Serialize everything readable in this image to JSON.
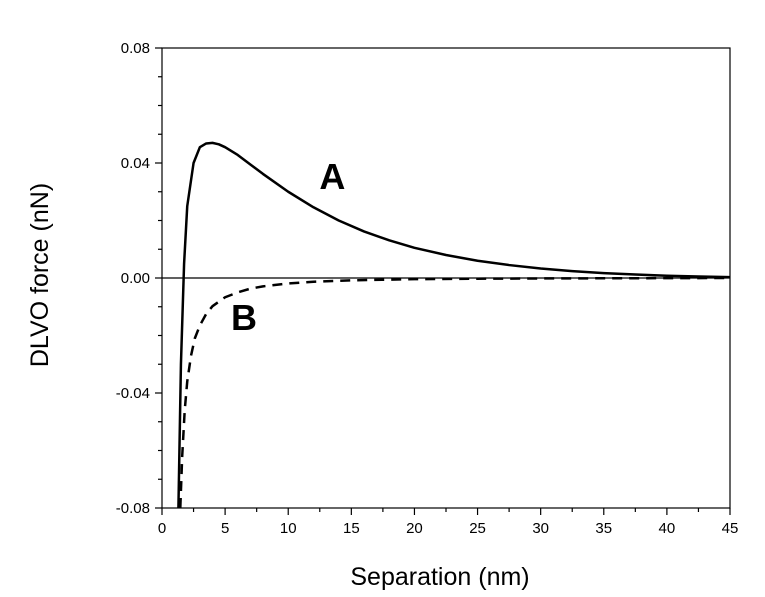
{
  "chart_data": {
    "type": "line",
    "xlabel": "Separation (nm)",
    "ylabel": "DLVO force (nN)",
    "xlim": [
      0,
      45
    ],
    "ylim": [
      -0.08,
      0.08
    ],
    "x_ticks": [
      "0",
      "5",
      "10",
      "15",
      "20",
      "25",
      "30",
      "35",
      "40",
      "45"
    ],
    "y_ticks": [
      "-0.08",
      "-0.04",
      "0.00",
      "0.04",
      "0.08"
    ],
    "grid": false,
    "zero_line": true,
    "series": [
      {
        "name": "A",
        "style": "solid",
        "color": "#000000",
        "x": [
          1.3,
          1.5,
          1.75,
          2.0,
          2.5,
          3.0,
          3.5,
          4.0,
          4.5,
          5.0,
          6.0,
          7.0,
          8.0,
          10.0,
          12.0,
          14.0,
          16.0,
          18.0,
          20.0,
          22.5,
          25.0,
          27.5,
          30.0,
          32.5,
          35.0,
          37.5,
          40.0,
          42.5,
          45.0
        ],
        "y": [
          -0.08,
          -0.03,
          0.005,
          0.025,
          0.04,
          0.0455,
          0.0468,
          0.047,
          0.0465,
          0.0455,
          0.0428,
          0.0395,
          0.0362,
          0.03,
          0.0246,
          0.02,
          0.0162,
          0.0131,
          0.0105,
          0.008,
          0.006,
          0.0045,
          0.0033,
          0.0024,
          0.0017,
          0.0012,
          0.0008,
          0.0005,
          0.0003
        ]
      },
      {
        "name": "B",
        "style": "dashed",
        "color": "#000000",
        "x": [
          1.45,
          1.6,
          1.8,
          2.0,
          2.3,
          2.6,
          3.0,
          3.5,
          4.0,
          5.0,
          6.0,
          7.0,
          8.0,
          10.0,
          12.0,
          15.0,
          20.0,
          25.0,
          30.0,
          35.0,
          40.0,
          45.0
        ],
        "y": [
          -0.08,
          -0.062,
          -0.046,
          -0.036,
          -0.027,
          -0.021,
          -0.0165,
          -0.0125,
          -0.0098,
          -0.0067,
          -0.005,
          -0.0037,
          -0.0029,
          -0.0019,
          -0.0013,
          -0.0008,
          -0.0004,
          -0.00025,
          -0.00015,
          -0.0001,
          -5e-05,
          0.0
        ]
      }
    ],
    "labels": [
      {
        "text": "A",
        "x": 13.5,
        "y": 0.031
      },
      {
        "text": "B",
        "x": 6.5,
        "y": -0.018
      }
    ]
  }
}
